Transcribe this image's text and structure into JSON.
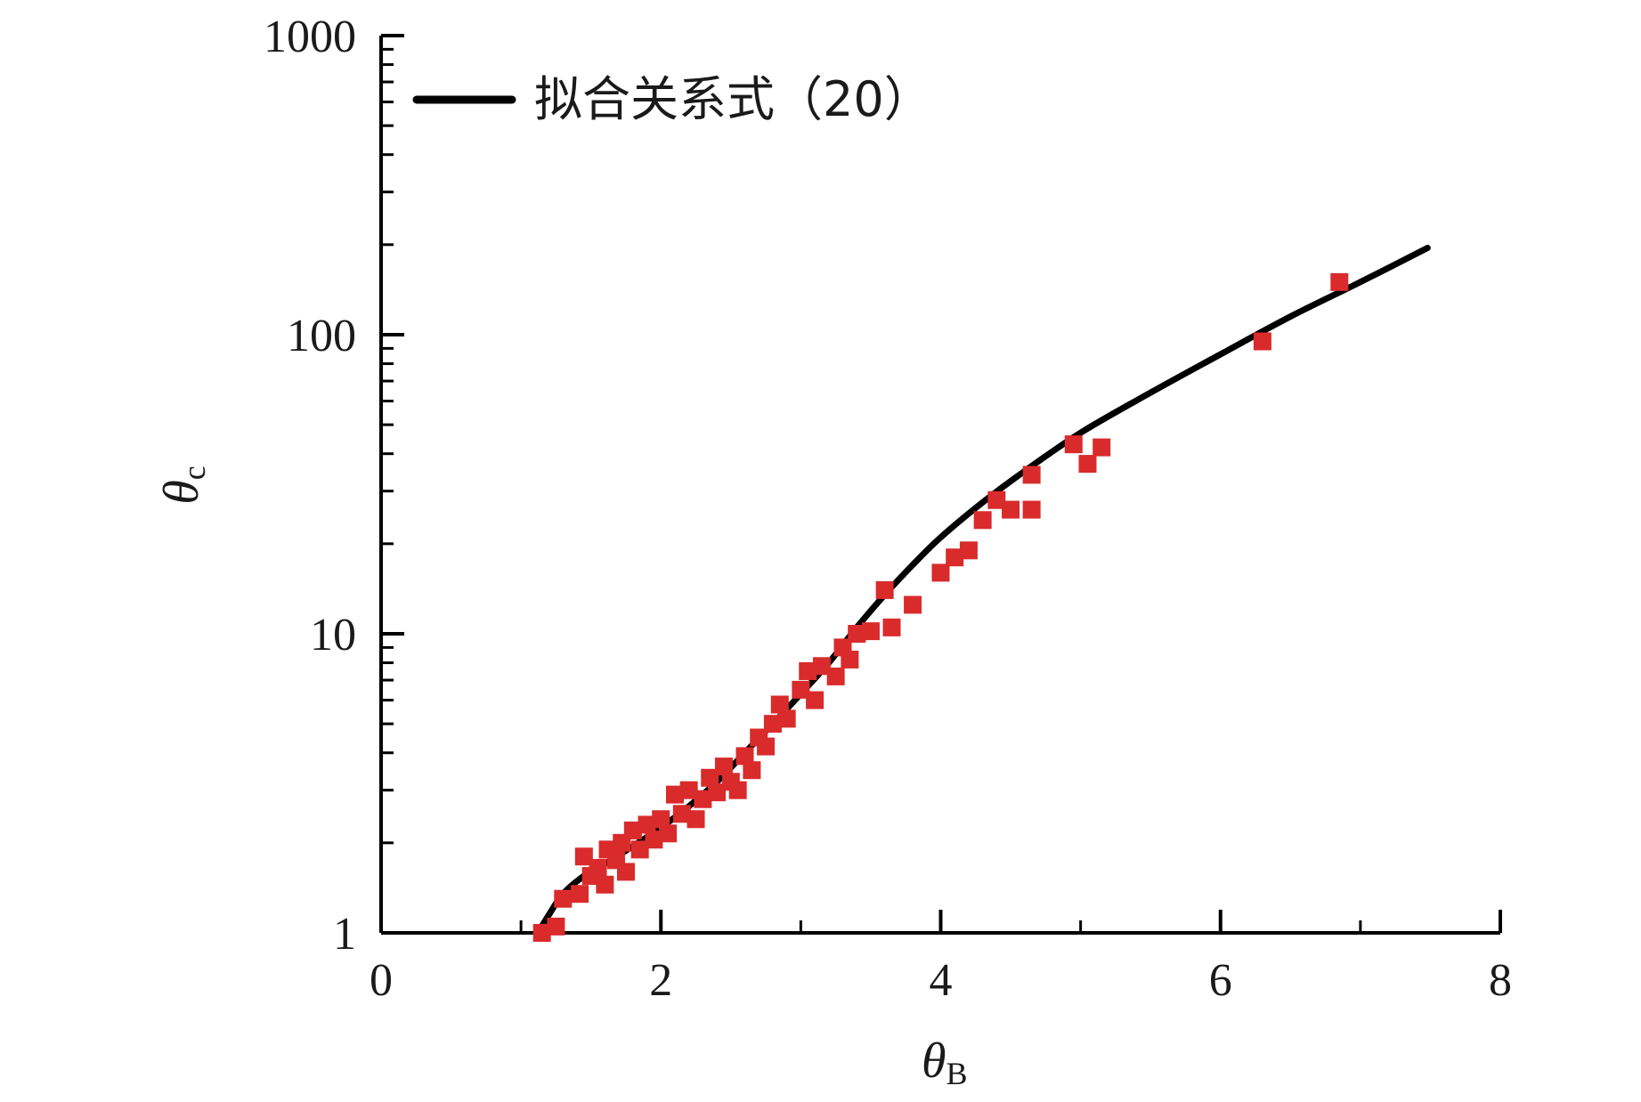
{
  "chart_data": {
    "type": "scatter",
    "xlabel": "θB",
    "xlabel_main": "θ",
    "xlabel_sub": "B",
    "ylabel": "θc",
    "ylabel_main": "θ",
    "ylabel_sub": "c",
    "xlim": [
      0,
      8
    ],
    "ylim": [
      1,
      1000
    ],
    "yscale": "log",
    "x_ticks": [
      "0",
      "2",
      "4",
      "6",
      "8"
    ],
    "y_ticks": [
      "1",
      "10",
      "100",
      "1000"
    ],
    "grid": false,
    "legend_position": "top-left",
    "series": [
      {
        "name": "拟合关系式（20）",
        "kind": "line",
        "color": "#000000",
        "points": [
          [
            1.12,
            1.0
          ],
          [
            1.2,
            1.15
          ],
          [
            1.3,
            1.35
          ],
          [
            1.45,
            1.55
          ],
          [
            1.6,
            1.7
          ],
          [
            1.8,
            1.95
          ],
          [
            2.0,
            2.25
          ],
          [
            2.2,
            2.65
          ],
          [
            2.4,
            3.2
          ],
          [
            2.6,
            4.0
          ],
          [
            2.8,
            5.0
          ],
          [
            3.0,
            6.3
          ],
          [
            3.2,
            8.0
          ],
          [
            3.4,
            10.5
          ],
          [
            3.6,
            13.5
          ],
          [
            3.8,
            17.0
          ],
          [
            4.0,
            21.0
          ],
          [
            4.3,
            27.5
          ],
          [
            4.6,
            35.0
          ],
          [
            5.0,
            47.0
          ],
          [
            5.5,
            64.0
          ],
          [
            6.0,
            86.0
          ],
          [
            6.5,
            115.0
          ],
          [
            7.0,
            150.0
          ],
          [
            7.48,
            195.0
          ]
        ]
      },
      {
        "name": "",
        "kind": "scatter",
        "color": "#d92b2b",
        "points": [
          [
            1.15,
            1.0
          ],
          [
            1.25,
            1.05
          ],
          [
            1.3,
            1.3
          ],
          [
            1.42,
            1.35
          ],
          [
            1.45,
            1.8
          ],
          [
            1.5,
            1.55
          ],
          [
            1.55,
            1.65
          ],
          [
            1.6,
            1.45
          ],
          [
            1.62,
            1.9
          ],
          [
            1.68,
            1.75
          ],
          [
            1.72,
            2.0
          ],
          [
            1.75,
            1.6
          ],
          [
            1.8,
            2.2
          ],
          [
            1.85,
            1.9
          ],
          [
            1.9,
            2.3
          ],
          [
            1.95,
            2.05
          ],
          [
            2.0,
            2.4
          ],
          [
            2.05,
            2.15
          ],
          [
            2.1,
            2.9
          ],
          [
            2.15,
            2.5
          ],
          [
            2.2,
            3.0
          ],
          [
            2.25,
            2.4
          ],
          [
            2.3,
            2.8
          ],
          [
            2.35,
            3.3
          ],
          [
            2.4,
            2.95
          ],
          [
            2.45,
            3.6
          ],
          [
            2.5,
            3.2
          ],
          [
            2.55,
            3.0
          ],
          [
            2.6,
            3.9
          ],
          [
            2.65,
            3.5
          ],
          [
            2.7,
            4.5
          ],
          [
            2.75,
            4.2
          ],
          [
            2.8,
            5.0
          ],
          [
            2.85,
            5.8
          ],
          [
            2.9,
            5.2
          ],
          [
            3.0,
            6.5
          ],
          [
            3.05,
            7.5
          ],
          [
            3.1,
            6.0
          ],
          [
            3.15,
            7.8
          ],
          [
            3.25,
            7.2
          ],
          [
            3.3,
            9.0
          ],
          [
            3.35,
            8.2
          ],
          [
            3.4,
            10.0
          ],
          [
            3.5,
            10.2
          ],
          [
            3.6,
            14.0
          ],
          [
            3.65,
            10.5
          ],
          [
            3.8,
            12.5
          ],
          [
            4.0,
            16.0
          ],
          [
            4.1,
            18.0
          ],
          [
            4.2,
            19.0
          ],
          [
            4.3,
            24.0
          ],
          [
            4.4,
            28.0
          ],
          [
            4.5,
            26.0
          ],
          [
            4.65,
            34.0
          ],
          [
            4.65,
            26.0
          ],
          [
            4.95,
            43.0
          ],
          [
            5.05,
            37.0
          ],
          [
            5.15,
            42.0
          ],
          [
            6.3,
            95.0
          ],
          [
            6.85,
            150.0
          ]
        ]
      }
    ]
  }
}
